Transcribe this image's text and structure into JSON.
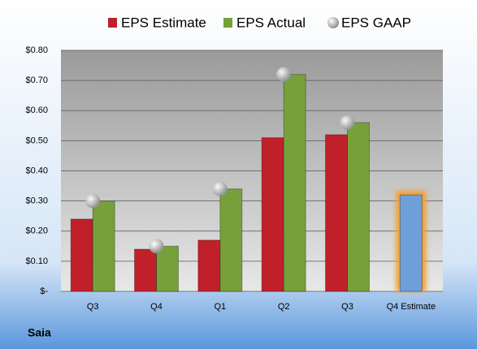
{
  "chart_data": {
    "type": "bar",
    "title": "Saia",
    "categories": [
      "Q3",
      "Q4",
      "Q1",
      "Q2",
      "Q3",
      "Q4 Estimate"
    ],
    "series": [
      {
        "name": "EPS Estimate",
        "color": "#c0202a",
        "values": [
          0.24,
          0.14,
          0.17,
          0.51,
          0.52,
          0.32
        ]
      },
      {
        "name": "EPS Actual",
        "color": "#76a03a",
        "values": [
          0.3,
          0.15,
          0.34,
          0.72,
          0.56,
          null
        ]
      },
      {
        "name": "EPS GAAP",
        "color": "#b8b8b8",
        "values": [
          0.3,
          0.15,
          0.34,
          0.72,
          0.56,
          null
        ]
      }
    ],
    "forecast_color": "#6f9fd8",
    "ylim": [
      0,
      0.8
    ],
    "yticks": [
      {
        "value": 0,
        "label": "$-"
      },
      {
        "value": 0.1,
        "label": "$0.10"
      },
      {
        "value": 0.2,
        "label": "$0.20"
      },
      {
        "value": 0.3,
        "label": "$0.30"
      },
      {
        "value": 0.4,
        "label": "$0.40"
      },
      {
        "value": 0.5,
        "label": "$0.50"
      },
      {
        "value": 0.6,
        "label": "$0.60"
      },
      {
        "value": 0.7,
        "label": "$0.70"
      },
      {
        "value": 0.8,
        "label": "$0.80"
      }
    ],
    "grid": true
  }
}
